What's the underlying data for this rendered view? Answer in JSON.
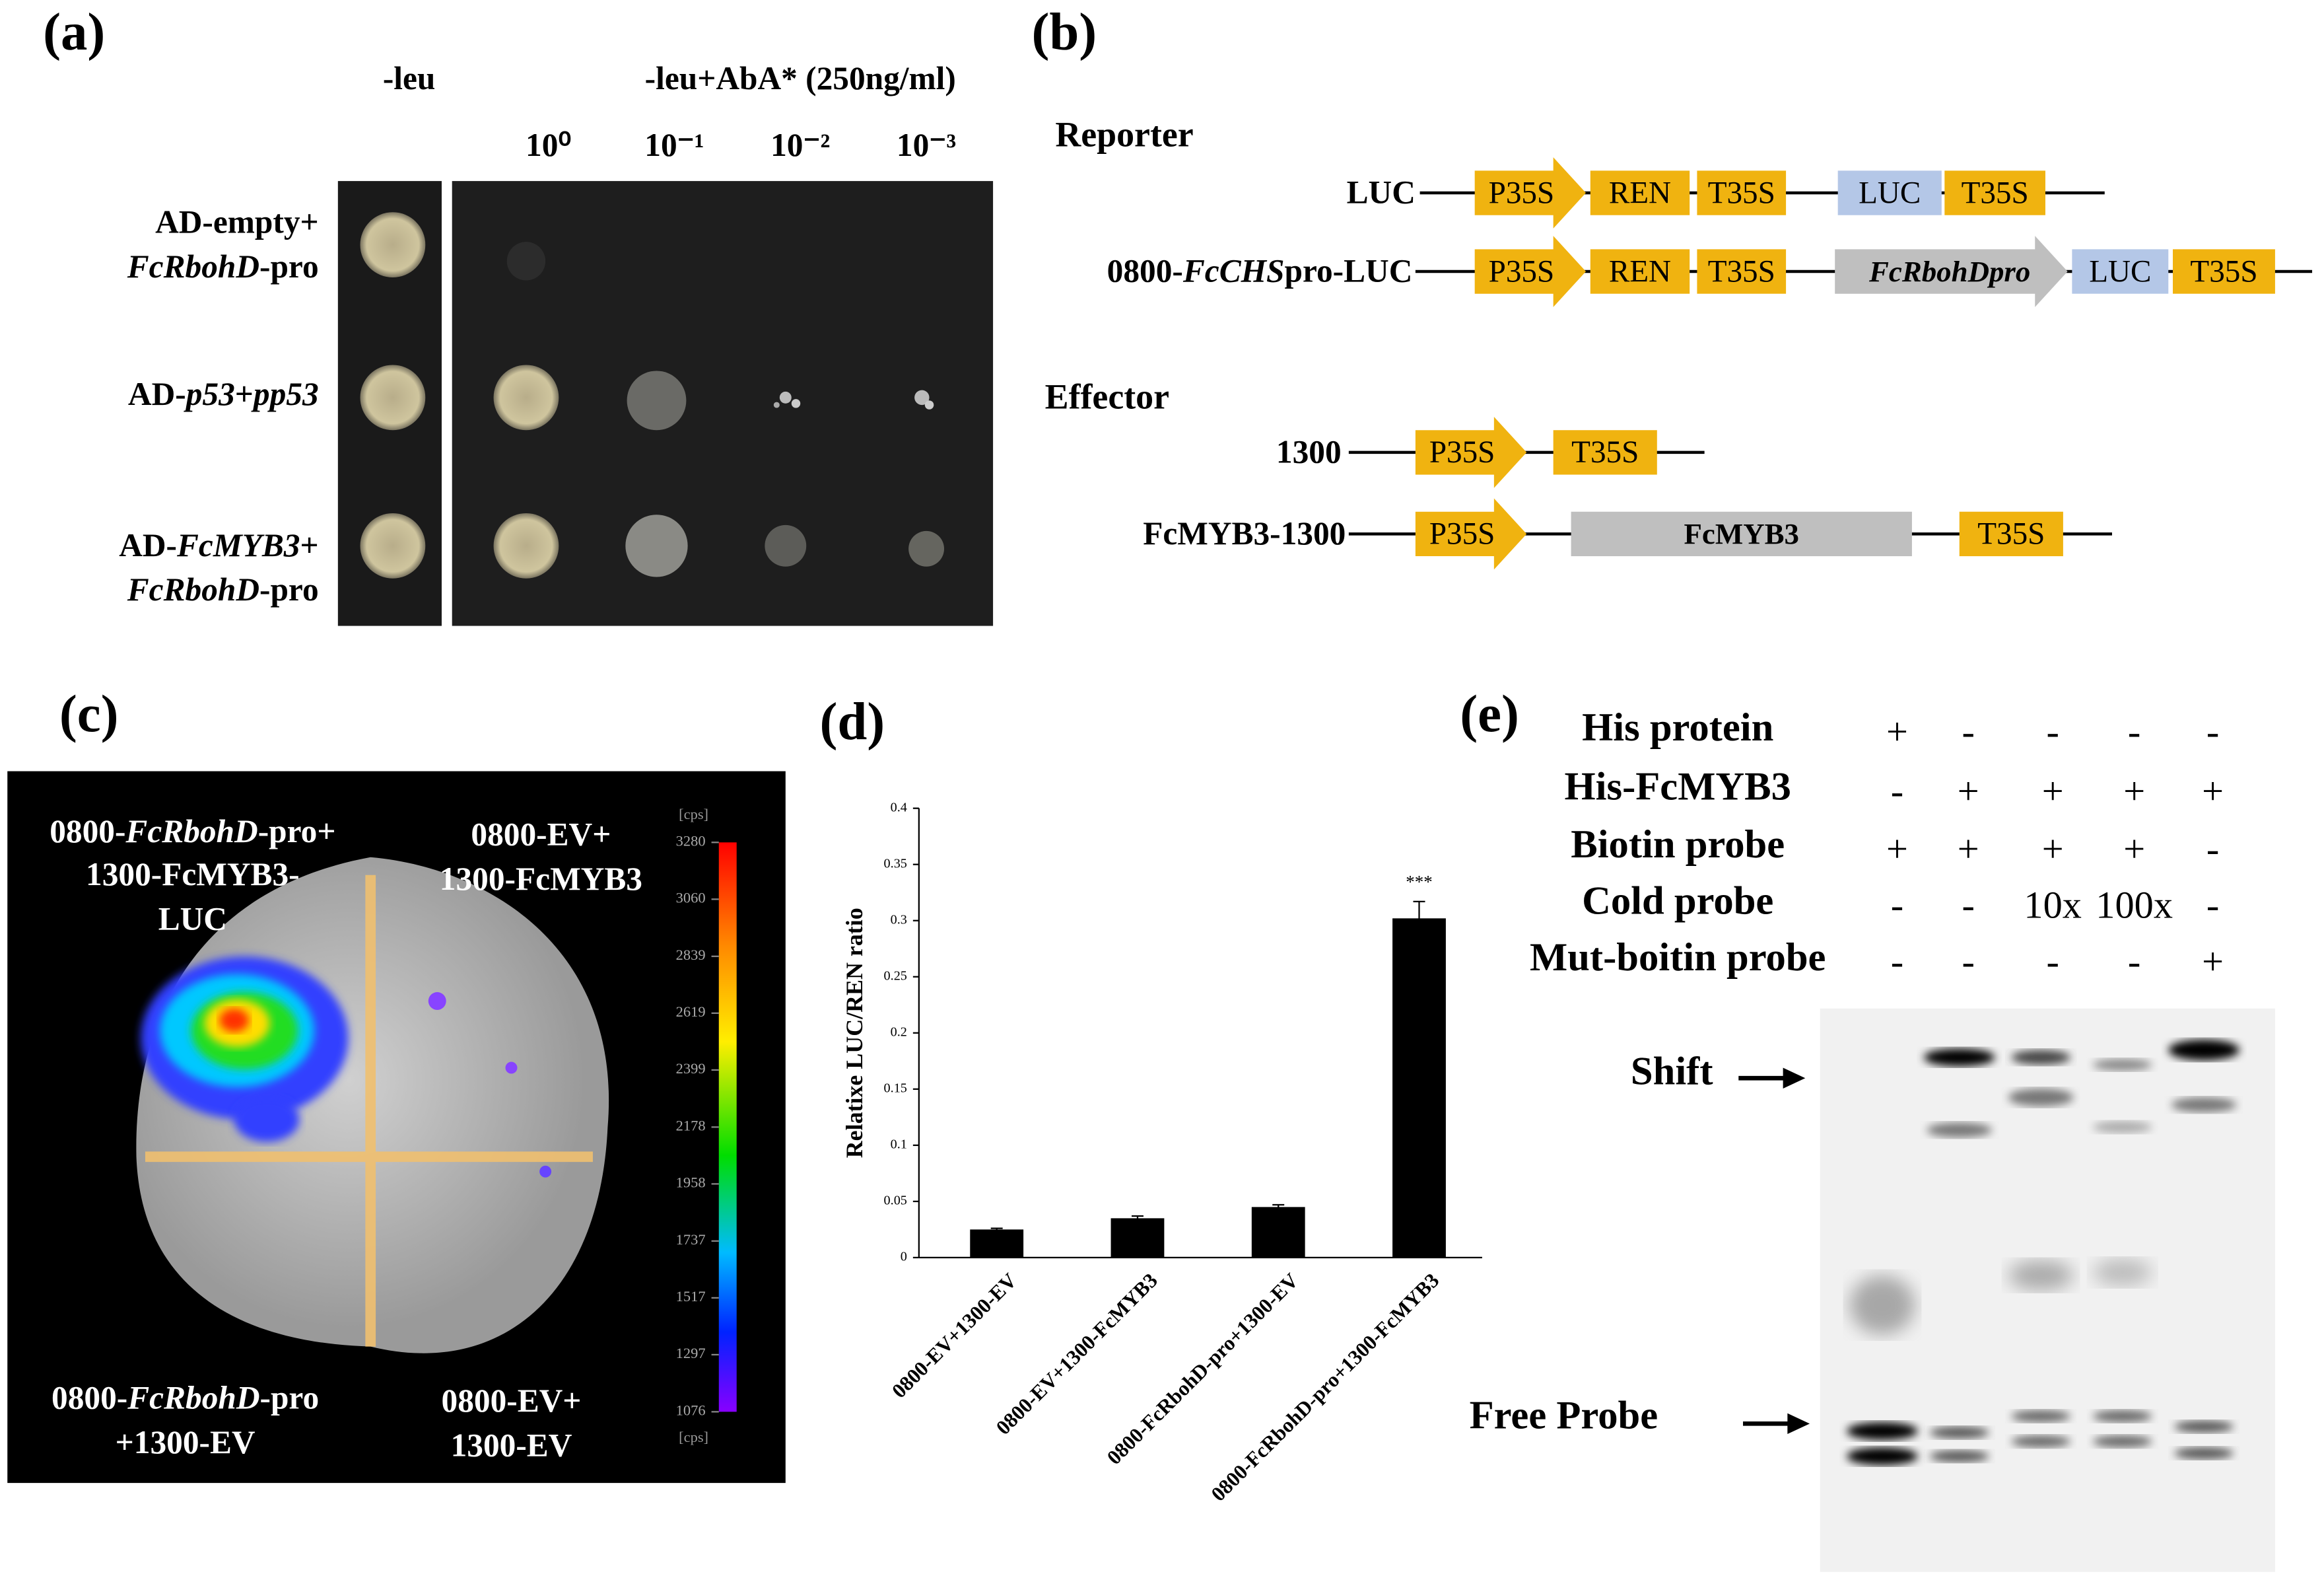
{
  "panels": {
    "a": {
      "label": "(a)",
      "medium_headers": [
        "-leu",
        "-leu+AbA* (250ng/ml)"
      ],
      "dilutions": [
        "10⁰",
        "10⁻¹",
        "10⁻²",
        "10⁻³"
      ],
      "rows": [
        [
          [
            {
              "text": "AD-empty+"
            }
          ],
          [
            {
              "text": "FcRbohD",
              "italic": true
            },
            {
              "text": "-pro"
            }
          ]
        ],
        [
          [
            {
              "text": "AD-"
            },
            {
              "text": "p53",
              "italic": true
            },
            {
              "text": "+"
            },
            {
              "text": "pp53",
              "italic": true
            }
          ]
        ],
        [
          [
            {
              "text": "AD-"
            },
            {
              "text": "FcMYB3",
              "italic": true
            },
            {
              "text": "+"
            }
          ],
          [
            {
              "text": "FcRbohD",
              "italic": true
            },
            {
              "text": "-pro"
            }
          ]
        ]
      ]
    },
    "b": {
      "label": "(b)",
      "groups": [
        {
          "title": "Reporter",
          "constructs": [
            {
              "name": [
                {
                  "text": "LUC"
                }
              ],
              "parts": [
                "P35S",
                "REN",
                "T35S",
                "LUC",
                "T35S"
              ]
            },
            {
              "name": [
                {
                  "text": "0800-"
                },
                {
                  "text": "FcCHS",
                  "italic": true
                },
                {
                  "text": "pro-LUC"
                }
              ],
              "parts": [
                "P35S",
                "REN",
                "T35S",
                "FcRbohDpro",
                "LUC",
                "T35S"
              ]
            }
          ]
        },
        {
          "title": "Effector",
          "constructs": [
            {
              "name": [
                {
                  "text": "1300"
                }
              ],
              "parts": [
                "P35S",
                "T35S"
              ]
            },
            {
              "name": [
                {
                  "text": "FcMYB3-1300"
                }
              ],
              "parts": [
                "P35S",
                "FcMYB3",
                "T35S"
              ]
            }
          ]
        }
      ]
    },
    "c": {
      "label": "(c)",
      "quadrants": [
        [
          [
            {
              "text": "0800-"
            },
            {
              "text": "FcRbohD",
              "italic": true
            },
            {
              "text": "-pro+"
            }
          ],
          [
            {
              "text": "1300-FcMYB3-"
            }
          ],
          [
            {
              "text": "LUC"
            }
          ]
        ],
        [
          [
            {
              "text": "0800-EV+"
            }
          ],
          [
            {
              "text": "1300-FcMYB3"
            }
          ]
        ],
        [
          [
            {
              "text": "0800-"
            },
            {
              "text": "FcRbohD",
              "italic": true
            },
            {
              "text": "-pro"
            }
          ],
          [
            {
              "text": "+1300-EV"
            }
          ]
        ],
        [
          [
            {
              "text": "0800-EV+"
            }
          ],
          [
            {
              "text": "1300-EV"
            }
          ]
        ]
      ],
      "colorbar": {
        "unit": "[cps]",
        "lim": [
          1076,
          3280
        ],
        "ticks": [
          3280,
          3060,
          2839,
          2619,
          2399,
          2178,
          1958,
          1737,
          1517,
          1297,
          1076
        ]
      }
    },
    "e": {
      "label": "(e)",
      "conditions": [
        {
          "name": "His protein",
          "lanes": [
            "+",
            "-",
            "-",
            "-",
            "-"
          ]
        },
        {
          "name": "His-FcMYB3",
          "lanes": [
            "-",
            "+",
            "+",
            "+",
            "+"
          ]
        },
        {
          "name": "Biotin probe",
          "lanes": [
            "+",
            "+",
            "+",
            "+",
            "-"
          ]
        },
        {
          "name": "Cold probe",
          "lanes": [
            "-",
            "-",
            "10x",
            "100x",
            "-"
          ]
        },
        {
          "name": "Mut-boitin probe",
          "lanes": [
            "-",
            "-",
            "-",
            "-",
            "+"
          ]
        }
      ],
      "band_labels": [
        "Shift",
        "Free Probe"
      ]
    }
  },
  "chart_data": {
    "type": "bar",
    "panel_label": "(d)",
    "ylabel": "Relatixe LUC/REN ratio",
    "categories": [
      "0800-EV+1300-EV",
      "0800-EV+1300-FcMYB3",
      "0800-FcRbohD-pro+1300-EV",
      "0800-FcRbohD-pro+1300-FcMYB3"
    ],
    "values": [
      0.025,
      0.035,
      0.045,
      0.302
    ],
    "errors": [
      0.001,
      0.002,
      0.002,
      0.015
    ],
    "value_annotations": [
      null,
      null,
      null,
      "***"
    ],
    "color": "#000000",
    "ylim": [
      0,
      0.4
    ],
    "yticks": [
      0,
      0.05,
      0.1,
      0.15,
      0.2,
      0.25,
      0.3,
      0.35,
      0.4
    ]
  }
}
